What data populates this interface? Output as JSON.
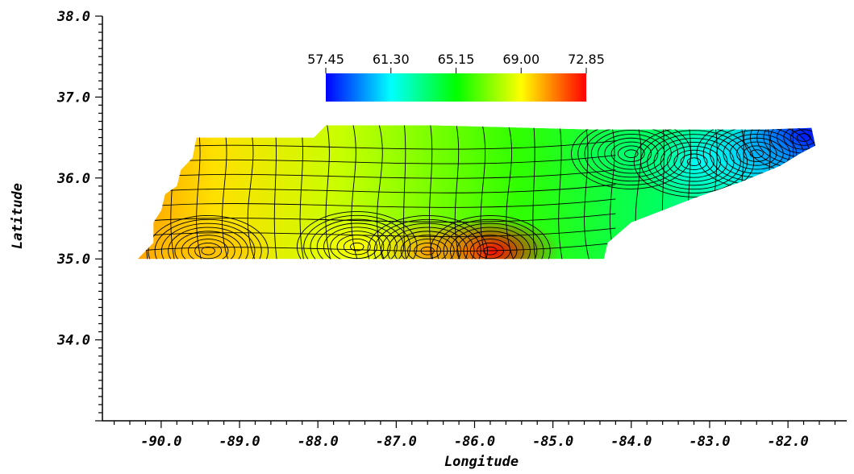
{
  "chart_data": {
    "type": "heatmap",
    "xlabel": "Longitude",
    "ylabel": "Latitude",
    "xlim": [
      -90.75,
      -81.25
    ],
    "ylim": [
      33.0,
      38.0
    ],
    "x_ticks": [
      {
        "value": -90.0,
        "label": "-90.0"
      },
      {
        "value": -89.0,
        "label": "-89.0"
      },
      {
        "value": -88.0,
        "label": "-88.0"
      },
      {
        "value": -87.0,
        "label": "-87.0"
      },
      {
        "value": -86.0,
        "label": "-86.0"
      },
      {
        "value": -85.0,
        "label": "-85.0"
      },
      {
        "value": -84.0,
        "label": "-84.0"
      },
      {
        "value": -83.0,
        "label": "-83.0"
      },
      {
        "value": -82.0,
        "label": "-82.0"
      }
    ],
    "y_ticks": [
      {
        "value": 34.0,
        "label": "34.0"
      },
      {
        "value": 35.0,
        "label": "35.0"
      },
      {
        "value": 36.0,
        "label": "36.0"
      },
      {
        "value": 37.0,
        "label": "37.0"
      },
      {
        "value": 38.0,
        "label": "38.0"
      }
    ],
    "colorbar": {
      "min": 57.45,
      "max": 72.85,
      "ticks": [
        {
          "value": 57.45,
          "label": "57.45"
        },
        {
          "value": 61.3,
          "label": "61.30"
        },
        {
          "value": 65.15,
          "label": "65.15"
        },
        {
          "value": 69.0,
          "label": "69.00"
        },
        {
          "value": 72.85,
          "label": "72.85"
        }
      ],
      "colors": [
        "#0000ff",
        "#00ffff",
        "#00ff00",
        "#ffff00",
        "#ff0000"
      ]
    },
    "region_outline": [
      [
        -90.3,
        35.0
      ],
      [
        -90.1,
        35.2
      ],
      [
        -90.1,
        35.45
      ],
      [
        -90.0,
        35.6
      ],
      [
        -89.95,
        35.8
      ],
      [
        -89.8,
        35.9
      ],
      [
        -89.75,
        36.1
      ],
      [
        -89.6,
        36.25
      ],
      [
        -89.55,
        36.5
      ],
      [
        -88.05,
        36.5
      ],
      [
        -87.9,
        36.65
      ],
      [
        -86.5,
        36.65
      ],
      [
        -84.5,
        36.6
      ],
      [
        -82.3,
        36.6
      ],
      [
        -81.7,
        36.62
      ],
      [
        -81.65,
        36.4
      ],
      [
        -81.85,
        36.3
      ],
      [
        -82.1,
        36.15
      ],
      [
        -82.6,
        35.95
      ],
      [
        -83.2,
        35.75
      ],
      [
        -83.6,
        35.6
      ],
      [
        -84.0,
        35.45
      ],
      [
        -84.3,
        35.2
      ],
      [
        -84.35,
        35.0
      ],
      [
        -90.3,
        35.0
      ]
    ],
    "anomalies": [
      {
        "lon": -81.8,
        "lat": 36.5,
        "value": 57.45
      },
      {
        "lon": -82.4,
        "lat": 36.3,
        "value": 60.0
      },
      {
        "lon": -83.2,
        "lat": 36.2,
        "value": 61.3
      },
      {
        "lon": -84.0,
        "lat": 36.3,
        "value": 63.5
      },
      {
        "lon": -85.8,
        "lat": 35.1,
        "value": 72.85
      },
      {
        "lon": -86.6,
        "lat": 35.1,
        "value": 70.5
      },
      {
        "lon": -89.4,
        "lat": 35.1,
        "value": 70.0
      },
      {
        "lon": -87.5,
        "lat": 35.15,
        "value": 69.0
      }
    ]
  }
}
